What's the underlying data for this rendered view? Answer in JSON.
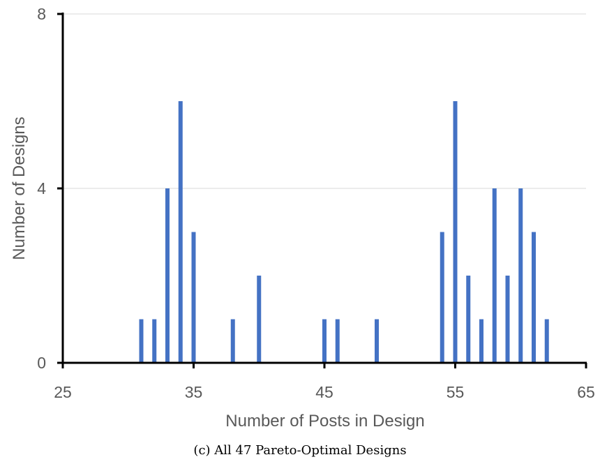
{
  "chart_data": {
    "type": "bar",
    "title": "",
    "xlabel": "Number of Posts in Design",
    "ylabel": "Number of Designs",
    "xlim": [
      25,
      65
    ],
    "ylim": [
      0,
      8
    ],
    "xticks": [
      "25",
      "35",
      "45",
      "55",
      "65"
    ],
    "yticks": [
      "0",
      "4",
      "8"
    ],
    "grid": true,
    "x": [
      31,
      32,
      33,
      34,
      35,
      38,
      40,
      45,
      46,
      49,
      54,
      55,
      56,
      57,
      58,
      59,
      60,
      61,
      62
    ],
    "values": [
      1,
      1,
      4,
      6,
      3,
      1,
      2,
      1,
      1,
      1,
      3,
      6,
      2,
      1,
      4,
      2,
      4,
      3,
      1
    ],
    "bar_color": "#4472C4",
    "axis_color": "#000000",
    "grid_color": "#D9D9D9"
  },
  "caption": "(c) All 47 Pareto-Optimal Designs"
}
